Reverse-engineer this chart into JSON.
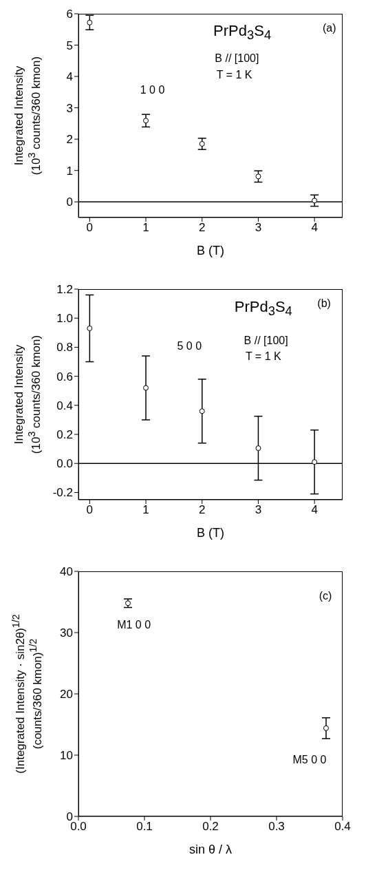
{
  "chart_data": [
    {
      "type": "scatter",
      "x": [
        0,
        1,
        2,
        3,
        4
      ],
      "values": [
        5.72,
        2.59,
        1.85,
        0.81,
        0.04
      ],
      "errors": [
        0.23,
        0.2,
        0.18,
        0.18,
        0.18
      ],
      "color": "#000000",
      "marker": "circle",
      "xlim": [
        -0.2,
        4.5
      ],
      "ylim": [
        -0.5,
        6
      ],
      "xticks": [
        0,
        1,
        2,
        3,
        4
      ],
      "yticks": [
        0,
        1,
        2,
        3,
        4,
        5,
        6
      ],
      "xlabel": "B (T)",
      "ylabel": "Integrated Intensity\n(10$^{3}$ counts/360 kmon)",
      "ref_lines": [
        {
          "axis": "y",
          "value": 0,
          "color": "#000000"
        }
      ],
      "annotations": [
        "PrPd$_{3}$S$_{4}$",
        "(a)",
        "B // [100]",
        "T = 1 K",
        "1 0 0"
      ]
    },
    {
      "type": "scatter",
      "x": [
        0,
        1,
        2,
        3,
        4
      ],
      "values": [
        0.93,
        0.52,
        0.36,
        0.105,
        0.01
      ],
      "errors": [
        0.23,
        0.22,
        0.22,
        0.22,
        0.22
      ],
      "color": "#000000",
      "marker": "circle",
      "xlim": [
        -0.2,
        4.5
      ],
      "ylim": [
        -0.25,
        1.2
      ],
      "xticks": [
        0,
        1,
        2,
        3,
        4
      ],
      "yticks": [
        {
          "value": -0.2,
          "label": "-0.2"
        },
        {
          "value": 0,
          "label": "0.0"
        },
        {
          "value": 0.2,
          "label": "0.2"
        },
        {
          "value": 0.4,
          "label": "0.4"
        },
        {
          "value": 0.6,
          "label": "0.6"
        },
        {
          "value": 0.8,
          "label": "0.8"
        },
        {
          "value": 1,
          "label": "1.0"
        },
        {
          "value": 1.2,
          "label": "1.2"
        }
      ],
      "xlabel": "B (T)",
      "ylabel": "Integrated Intensity\n(10$^{3}$ counts/360 kmon)",
      "ref_lines": [
        {
          "axis": "y",
          "value": 0,
          "color": "#000000"
        }
      ],
      "annotations": [
        "PrPd$_{3}$S$_{4}$",
        "(b)",
        "B // [100]",
        "T = 1 K",
        "5 0 0"
      ]
    },
    {
      "type": "scatter",
      "x": [
        0.075,
        0.375
      ],
      "values": [
        34.8,
        14.4
      ],
      "errors": [
        0.7,
        1.7
      ],
      "color": "#000000",
      "marker": "circle",
      "xlim": [
        0,
        0.4
      ],
      "ylim": [
        0,
        40
      ],
      "xticks": [
        {
          "value": 0,
          "label": "0.0"
        },
        {
          "value": 0.1,
          "label": "0.1"
        },
        {
          "value": 0.2,
          "label": "0.2"
        },
        {
          "value": 0.3,
          "label": "0.3"
        },
        {
          "value": 0.4,
          "label": "0.4"
        }
      ],
      "yticks": [
        0,
        10,
        20,
        30,
        40
      ],
      "xlabel": "sin θ / λ",
      "ylabel": "(Integrated Intensity · sin2θ)$^{1/2}$\n(counts/360 kmon)$^{1/2}$",
      "annotations": [
        "(c)",
        "M1 0 0",
        "M5 0 0"
      ]
    }
  ]
}
